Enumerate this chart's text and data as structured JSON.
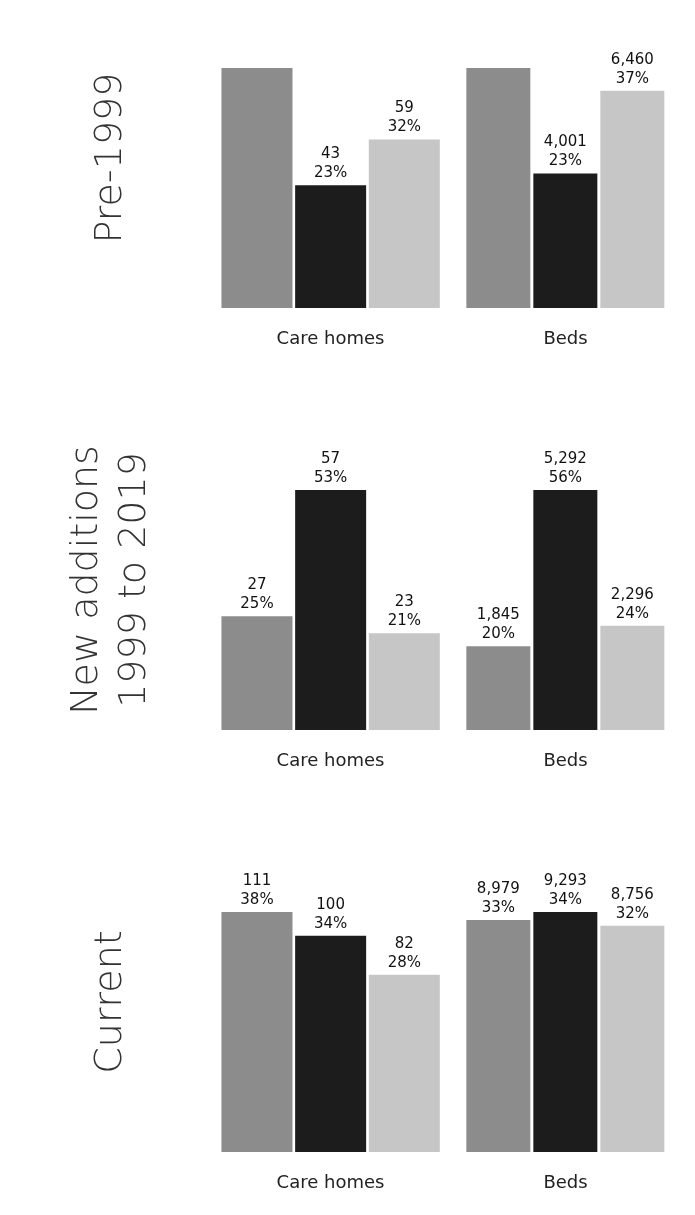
{
  "chart_data": [
    {
      "type": "bar",
      "ylabel": "Pre-1999",
      "xlabel": "Care homes",
      "categories": [
        null,
        null,
        null
      ],
      "values": [
        84,
        43,
        59
      ],
      "colors": [
        "#8c8c8c",
        "#1c1c1c",
        "#c6c6c6"
      ],
      "value_labels": [
        null,
        "43\n23%",
        "59\n32%"
      ]
    },
    {
      "type": "bar",
      "xlabel": "Beds",
      "categories": [
        null,
        null,
        null
      ],
      "values": [
        7134,
        4001,
        6460
      ],
      "colors": [
        "#8c8c8c",
        "#1c1c1c",
        "#c6c6c6"
      ],
      "value_labels": [
        null,
        "4,001\n23%",
        "6,460\n37%"
      ]
    },
    {
      "type": "bar",
      "ylabel": "New additions\n1999 to 2019",
      "xlabel": "Care homes",
      "categories": [
        null,
        null,
        null
      ],
      "values": [
        27,
        57,
        23
      ],
      "colors": [
        "#8c8c8c",
        "#1c1c1c",
        "#c6c6c6"
      ],
      "value_labels": [
        "27\n25%",
        "57\n53%",
        "23\n21%"
      ]
    },
    {
      "type": "bar",
      "xlabel": "Beds",
      "categories": [
        null,
        null,
        null
      ],
      "values": [
        1845,
        5292,
        2296
      ],
      "colors": [
        "#8c8c8c",
        "#1c1c1c",
        "#c6c6c6"
      ],
      "value_labels": [
        "1,845\n20%",
        "5,292\n56%",
        "2,296\n24%"
      ]
    },
    {
      "type": "bar",
      "ylabel": "Current",
      "xlabel": "Care homes",
      "categories": [
        null,
        null,
        null
      ],
      "values": [
        111,
        100,
        82
      ],
      "colors": [
        "#8c8c8c",
        "#1c1c1c",
        "#c6c6c6"
      ],
      "value_labels": [
        "111\n38%",
        "100\n34%",
        "82\n28%"
      ]
    },
    {
      "type": "bar",
      "xlabel": "Beds",
      "categories": [
        null,
        null,
        null
      ],
      "values": [
        8979,
        9293,
        8756
      ],
      "colors": [
        "#8c8c8c",
        "#1c1c1c",
        "#c6c6c6"
      ],
      "value_labels": [
        "8,979\n33%",
        "9,293\n34%",
        "8,756\n32%"
      ]
    }
  ]
}
